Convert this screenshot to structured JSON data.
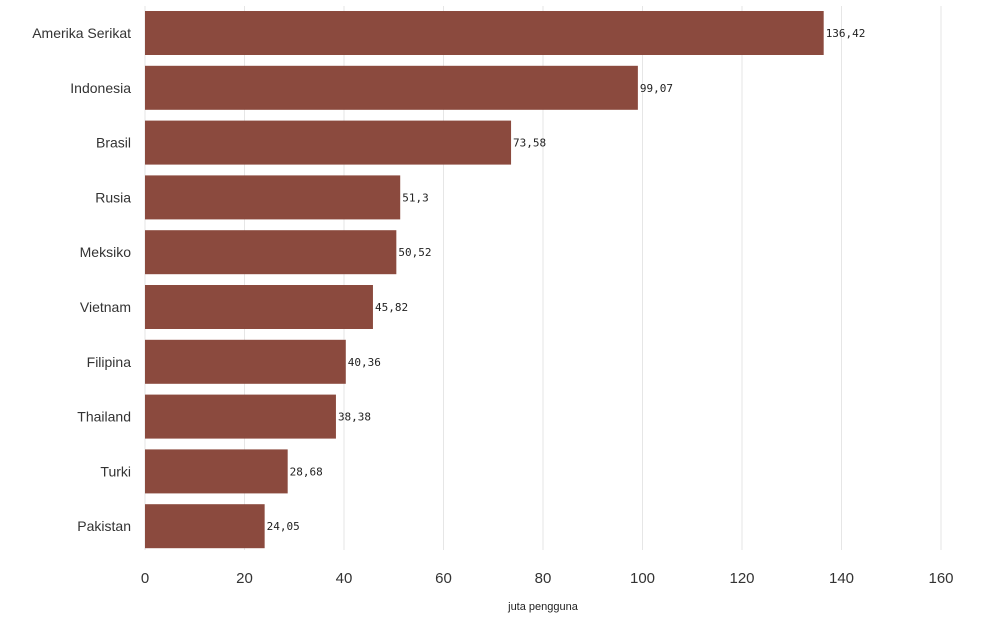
{
  "chart_data": {
    "type": "bar",
    "orientation": "horizontal",
    "categories": [
      "Amerika Serikat",
      "Indonesia",
      "Brasil",
      "Rusia",
      "Meksiko",
      "Vietnam",
      "Filipina",
      "Thailand",
      "Turki",
      "Pakistan"
    ],
    "values": [
      136.42,
      99.07,
      73.58,
      51.3,
      50.52,
      45.82,
      40.36,
      38.38,
      28.68,
      24.05
    ],
    "value_labels": [
      "136,42",
      "99,07",
      "73,58",
      "51,3",
      "50,52",
      "45,82",
      "40,36",
      "38,38",
      "28,68",
      "24,05"
    ],
    "xlabel": "juta pengguna",
    "xlim": [
      0,
      160
    ],
    "xticks": [
      0,
      20,
      40,
      60,
      80,
      100,
      120,
      140,
      160
    ],
    "grid": true,
    "bar_color": "#8b4a3e"
  }
}
